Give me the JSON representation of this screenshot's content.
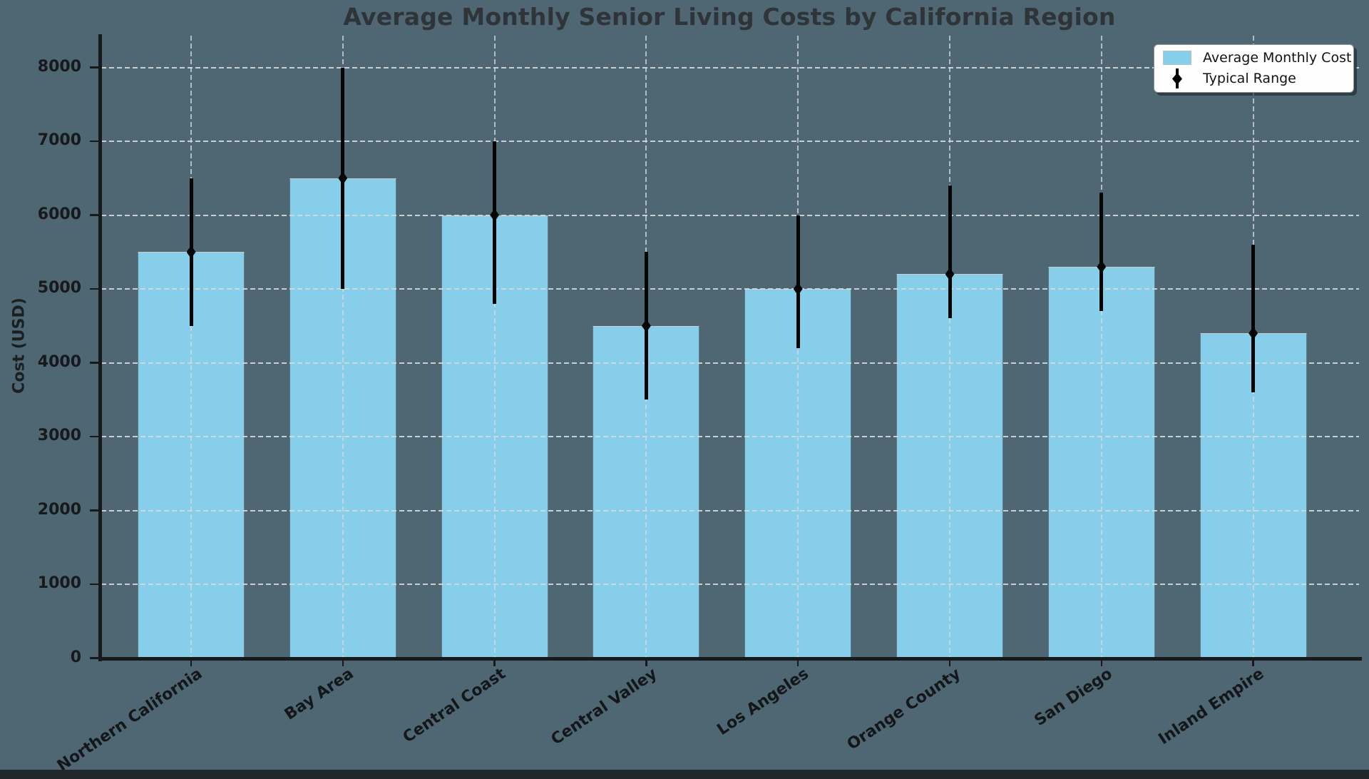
{
  "title": "Average Monthly Senior Living Costs by California Region",
  "legend": {
    "items": [
      {
        "label": "Average Monthly Cost",
        "swatch": "skyblue-patch"
      },
      {
        "label": "Typical Range",
        "swatch": "black-errorbar-diamond"
      }
    ]
  },
  "colors": {
    "background": "#4e6772",
    "bar_fill": "#87ceeb",
    "error_bar": "#000000",
    "grid": "#d3d9dc",
    "axis": "#17191b",
    "title_text": "#2f3439",
    "legend_background": "#fefefe",
    "bottom_strip": "#22272b"
  },
  "chart_data": {
    "type": "bar",
    "title": "Average Monthly Senior Living Costs by California Region",
    "xlabel": "",
    "ylabel": "Cost (USD)",
    "ylim": [
      0,
      8450
    ],
    "yticks": [
      0,
      1000,
      2000,
      3000,
      4000,
      5000,
      6000,
      7000,
      8000
    ],
    "grid": true,
    "grid_style": "dashed, both axes, drawn over bars",
    "legend_position": "upper right",
    "categories": [
      "Northern California",
      "Bay Area",
      "Central Coast",
      "Central Valley",
      "Los Angeles",
      "Orange County",
      "San Diego",
      "Inland Empire"
    ],
    "series": [
      {
        "name": "Average Monthly Cost",
        "type": "bar",
        "values": [
          5500,
          6500,
          6000,
          4500,
          5000,
          5200,
          5300,
          4400
        ]
      },
      {
        "name": "Typical Range",
        "type": "errorbar",
        "marker": "diamond",
        "low": [
          4500,
          5000,
          4800,
          3500,
          4200,
          4600,
          4700,
          3600
        ],
        "high": [
          6500,
          8000,
          7000,
          5500,
          6000,
          6400,
          6300,
          5600
        ]
      }
    ]
  }
}
